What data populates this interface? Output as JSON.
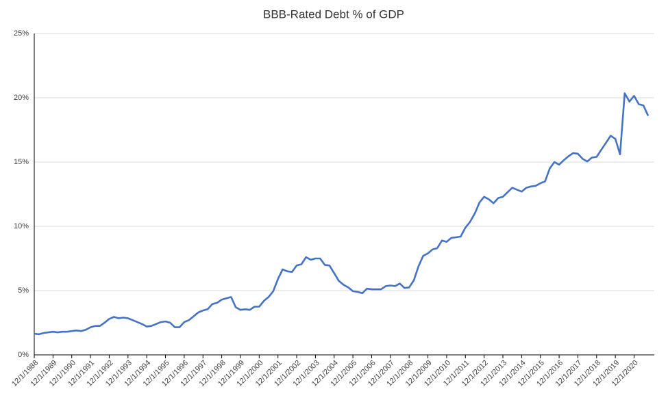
{
  "chart_data": {
    "type": "line",
    "title": "BBB-Rated Debt % of GDP",
    "categories": [
      "12/1/1988",
      null,
      null,
      null,
      "12/1/1989",
      null,
      null,
      null,
      "12/1/1990",
      null,
      null,
      null,
      "12/1/1991",
      null,
      null,
      null,
      "12/1/1992",
      null,
      null,
      null,
      "12/1/1993",
      null,
      null,
      null,
      "12/1/1994",
      null,
      null,
      null,
      "12/1/1995",
      null,
      null,
      null,
      "12/1/1996",
      null,
      null,
      null,
      "12/1/1997",
      null,
      null,
      null,
      "12/1/1998",
      null,
      null,
      null,
      "12/1/1999",
      null,
      null,
      null,
      "12/1/2000",
      null,
      null,
      null,
      "12/1/2001",
      null,
      null,
      null,
      "12/1/2002",
      null,
      null,
      null,
      "12/1/2003",
      null,
      null,
      null,
      "12/1/2004",
      null,
      null,
      null,
      "12/1/2005",
      null,
      null,
      null,
      "12/1/2006",
      null,
      null,
      null,
      "12/1/2007",
      null,
      null,
      null,
      "12/1/2008",
      null,
      null,
      null,
      "12/1/2009",
      null,
      null,
      null,
      "12/1/2010",
      null,
      null,
      null,
      "12/1/2011",
      null,
      null,
      null,
      "12/1/2012",
      null,
      null,
      null,
      "12/1/2013",
      null,
      null,
      null,
      "12/1/2014",
      null,
      null,
      null,
      "12/1/2015",
      null,
      null,
      null,
      "12/1/2016",
      null,
      null,
      null,
      "12/1/2017",
      null,
      null,
      null,
      "12/1/2018",
      null,
      null,
      null,
      "12/1/2019",
      null,
      null,
      null,
      "12/1/2020",
      null,
      null,
      null
    ],
    "values": [
      1.65,
      1.6,
      1.7,
      1.75,
      1.8,
      1.75,
      1.8,
      1.8,
      1.85,
      1.9,
      1.85,
      1.95,
      2.15,
      2.25,
      2.25,
      2.5,
      2.8,
      2.95,
      2.85,
      2.9,
      2.85,
      2.7,
      2.55,
      2.4,
      2.2,
      2.25,
      2.4,
      2.55,
      2.6,
      2.5,
      2.15,
      2.15,
      2.55,
      2.7,
      3.0,
      3.3,
      3.45,
      3.55,
      3.95,
      4.05,
      4.3,
      4.4,
      4.5,
      3.7,
      3.5,
      3.55,
      3.5,
      3.75,
      3.75,
      4.2,
      4.5,
      4.95,
      5.9,
      6.65,
      6.5,
      6.45,
      6.95,
      7.05,
      7.6,
      7.4,
      7.5,
      7.5,
      7.0,
      6.95,
      6.35,
      5.75,
      5.45,
      5.25,
      4.95,
      4.9,
      4.8,
      5.15,
      5.1,
      5.1,
      5.1,
      5.35,
      5.4,
      5.35,
      5.55,
      5.2,
      5.25,
      5.8,
      6.9,
      7.7,
      7.9,
      8.2,
      8.3,
      8.9,
      8.8,
      9.1,
      9.15,
      9.2,
      9.9,
      10.35,
      11.0,
      11.85,
      12.3,
      12.1,
      11.8,
      12.2,
      12.3,
      12.65,
      13.0,
      12.85,
      12.7,
      13.0,
      13.1,
      13.15,
      13.35,
      13.5,
      14.5,
      15.0,
      14.8,
      15.15,
      15.45,
      15.7,
      15.65,
      15.25,
      15.05,
      15.35,
      15.4,
      15.95,
      16.5,
      17.05,
      16.8,
      15.6,
      20.35,
      19.7,
      20.15,
      19.5,
      19.4,
      18.6
    ],
    "color": "#4472c4",
    "ylim": [
      0,
      25
    ],
    "yticks": [
      {
        "value": 0,
        "label": "0%"
      },
      {
        "value": 5,
        "label": "5%"
      },
      {
        "value": 10,
        "label": "10%"
      },
      {
        "value": 15,
        "label": "15%"
      },
      {
        "value": 20,
        "label": "20%"
      },
      {
        "value": 25,
        "label": "25%"
      }
    ],
    "grid": true
  }
}
